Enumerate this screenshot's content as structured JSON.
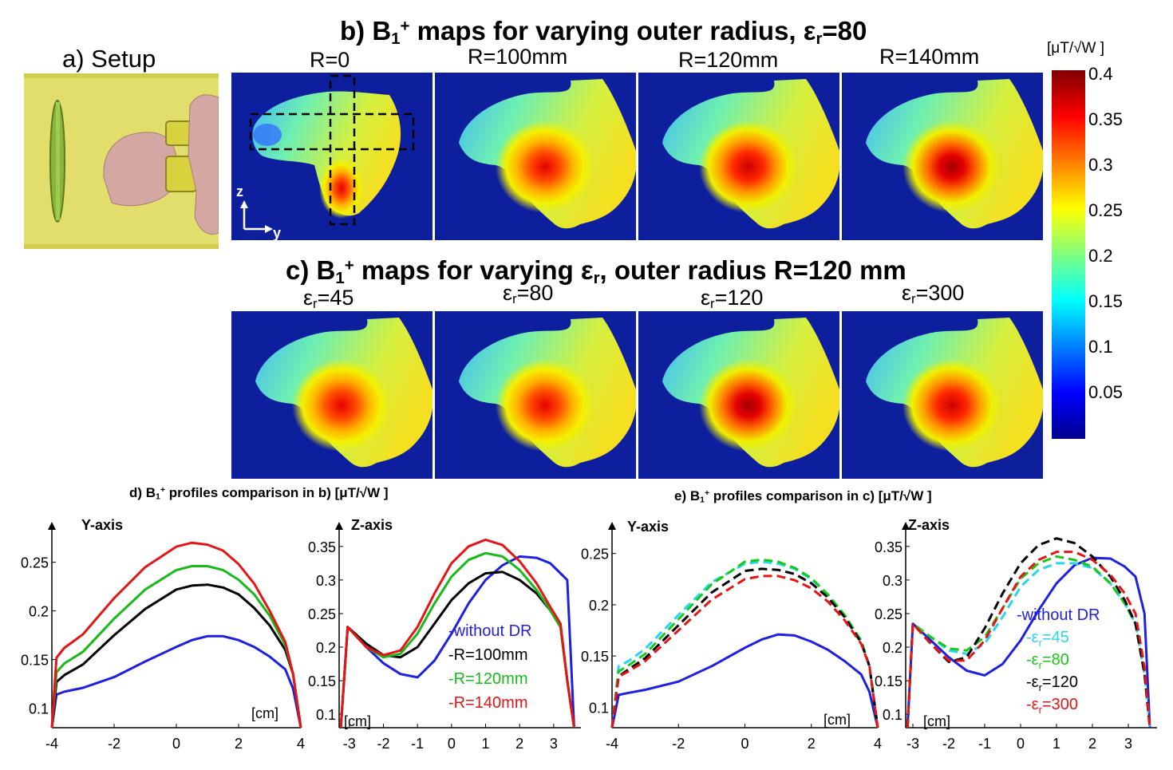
{
  "colors": {
    "background_map": "#0d1f9c",
    "without_dr": "#1f1fe0",
    "r100": "#000000",
    "r120": "#18b918",
    "r140": "#e51515",
    "er45": "#2ad4f0",
    "er80": "#18c818",
    "er120": "#000000",
    "er300": "#e51515"
  },
  "panel_a": {
    "title": "a) Setup"
  },
  "panel_b": {
    "title_pre": "b) B",
    "title_sub": "1",
    "title_sup": "+",
    "title_mid": " maps for varying outer radius, ε",
    "title_sub2": "r",
    "title_post": "=80",
    "maps": [
      "R=0",
      "R=100mm",
      "R=120mm",
      "R=140mm"
    ],
    "axis_z": "z",
    "axis_y": "y"
  },
  "panel_c": {
    "title_pre": "c) B",
    "title_sub": "1",
    "title_sup": "+",
    "title_mid": " maps for varying ε",
    "title_sub2": "r",
    "title_post": ", outer radius R=120 mm",
    "maps": [
      {
        "pre": "ε",
        "sub": "r",
        "post": "=45"
      },
      {
        "pre": "ε",
        "sub": "r",
        "post": "=80"
      },
      {
        "pre": "ε",
        "sub": "r",
        "post": "=120"
      },
      {
        "pre": "ε",
        "sub": "r",
        "post": "=300"
      }
    ]
  },
  "colorbar": {
    "unit": "[μT/√W ]",
    "ticks": [
      "0.4",
      "0.35",
      "0.3",
      "0.25",
      "0.2",
      "0.15",
      "0.1",
      "0.05"
    ]
  },
  "panel_d": {
    "title_pre": "d) B",
    "title_sub": "1",
    "title_sup": "+",
    "title_post": " profiles comparison in b) [μT/√W ]"
  },
  "panel_e": {
    "title_pre": "e) B",
    "title_sub": "1",
    "title_sup": "+",
    "title_post": " profiles comparison in c) [μT/√W ]"
  },
  "chart_data": [
    {
      "type": "line",
      "title": "Y-axis",
      "xlabel": "[cm]",
      "xlim": [
        -4,
        4
      ],
      "ylim": [
        0.08,
        0.28
      ],
      "xticks": [
        "-4",
        "-2",
        "0",
        "2",
        "4"
      ],
      "yticks": [
        "0.25",
        "0.2",
        "0.15",
        "0.1"
      ],
      "yticks_values": [
        0.25,
        0.2,
        0.15,
        0.1
      ],
      "x": [
        -4,
        -3.85,
        -3.6,
        -3,
        -2,
        -1,
        0,
        0.5,
        1,
        1.5,
        2,
        2.5,
        3,
        3.5,
        3.75,
        4
      ],
      "series": [
        {
          "name": "without DR",
          "color": "#1f1fe0",
          "dash": false,
          "values": [
            0.08,
            0.114,
            0.117,
            0.121,
            0.132,
            0.148,
            0.163,
            0.17,
            0.174,
            0.174,
            0.17,
            0.163,
            0.153,
            0.14,
            0.12,
            0.08
          ]
        },
        {
          "name": "R=100mm",
          "color": "#000000",
          "dash": false,
          "values": [
            0.08,
            0.127,
            0.134,
            0.145,
            0.175,
            0.202,
            0.222,
            0.226,
            0.227,
            0.224,
            0.217,
            0.203,
            0.185,
            0.16,
            0.135,
            0.08
          ]
        },
        {
          "name": "R=120mm",
          "color": "#18b918",
          "dash": false,
          "values": [
            0.08,
            0.137,
            0.146,
            0.158,
            0.192,
            0.222,
            0.242,
            0.246,
            0.246,
            0.242,
            0.232,
            0.217,
            0.195,
            0.165,
            0.135,
            0.08
          ]
        },
        {
          "name": "R=140mm",
          "color": "#e51515",
          "dash": false,
          "values": [
            0.08,
            0.152,
            0.162,
            0.176,
            0.213,
            0.245,
            0.266,
            0.27,
            0.268,
            0.262,
            0.248,
            0.228,
            0.2,
            0.168,
            0.135,
            0.08
          ]
        }
      ]
    },
    {
      "type": "line",
      "title": "Z-axis",
      "xlabel": "[cm]",
      "xlim": [
        -3.3,
        3.8
      ],
      "ylim": [
        0.08,
        0.37
      ],
      "xticks": [
        "-3",
        "-2",
        "-1",
        "0",
        "1",
        "2",
        "3"
      ],
      "xticks_values": [
        -3,
        -2,
        -1,
        0,
        1,
        2,
        3
      ],
      "yticks": [
        "0.35",
        "0.3",
        "0.25",
        "0.2",
        "0.15",
        "0.1"
      ],
      "yticks_values": [
        0.35,
        0.3,
        0.25,
        0.2,
        0.15,
        0.1
      ],
      "x": [
        -3.25,
        -3.05,
        -2.5,
        -2,
        -1.5,
        -1,
        -0.5,
        0,
        0.5,
        1,
        1.5,
        2,
        2.5,
        2.9,
        3.2,
        3.4,
        3.6
      ],
      "legend": [
        {
          "text": "-without DR",
          "color": "#1f1fe0"
        },
        {
          "text": "-R=100mm",
          "color": "#000000"
        },
        {
          "text": "-R=120mm",
          "color": "#18b918"
        },
        {
          "text": "-R=140mm",
          "color": "#e51515"
        }
      ],
      "series": [
        {
          "name": "without DR",
          "color": "#1f1fe0",
          "dash": false,
          "values": [
            0.08,
            0.23,
            0.2,
            0.176,
            0.16,
            0.155,
            0.18,
            0.22,
            0.265,
            0.3,
            0.322,
            0.335,
            0.333,
            0.325,
            0.31,
            0.3,
            0.08
          ]
        },
        {
          "name": "R=100mm",
          "color": "#000000",
          "dash": false,
          "values": [
            0.08,
            0.23,
            0.205,
            0.188,
            0.185,
            0.2,
            0.235,
            0.27,
            0.295,
            0.31,
            0.312,
            0.3,
            0.28,
            0.255,
            0.23,
            0.15,
            0.08
          ]
        },
        {
          "name": "R=120mm",
          "color": "#18b918",
          "dash": false,
          "values": [
            0.08,
            0.23,
            0.2,
            0.185,
            0.19,
            0.22,
            0.265,
            0.305,
            0.33,
            0.34,
            0.335,
            0.315,
            0.285,
            0.255,
            0.23,
            0.15,
            0.08
          ]
        },
        {
          "name": "R=140mm",
          "color": "#e51515",
          "dash": false,
          "values": [
            0.08,
            0.23,
            0.2,
            0.188,
            0.195,
            0.23,
            0.28,
            0.325,
            0.35,
            0.36,
            0.352,
            0.328,
            0.295,
            0.26,
            0.235,
            0.15,
            0.08
          ]
        }
      ]
    },
    {
      "type": "line",
      "title": "Y-axis",
      "xlabel": "[cm]",
      "xlim": [
        -4,
        4
      ],
      "ylim": [
        0.08,
        0.27
      ],
      "xticks": [
        "-4",
        "-2",
        "0",
        "2",
        "4"
      ],
      "yticks": [
        "0.25",
        "0.2",
        "0.15",
        "0.1"
      ],
      "yticks_values": [
        0.25,
        0.2,
        0.15,
        0.1
      ],
      "x": [
        -4,
        -3.8,
        -3.5,
        -3,
        -2,
        -1,
        0,
        0.5,
        1,
        1.5,
        2,
        2.5,
        3,
        3.5,
        3.75,
        4
      ],
      "series": [
        {
          "name": "without DR",
          "color": "#1f1fe0",
          "dash": false,
          "values": [
            0.08,
            0.112,
            0.114,
            0.117,
            0.125,
            0.14,
            0.158,
            0.166,
            0.171,
            0.17,
            0.164,
            0.156,
            0.145,
            0.132,
            0.115,
            0.08
          ]
        },
        {
          "name": "εr=45",
          "color": "#2ad4f0",
          "dash": true,
          "values": [
            0.08,
            0.14,
            0.145,
            0.157,
            0.19,
            0.222,
            0.24,
            0.242,
            0.24,
            0.235,
            0.225,
            0.21,
            0.19,
            0.165,
            0.14,
            0.08
          ]
        },
        {
          "name": "εr=80",
          "color": "#18c818",
          "dash": true,
          "values": [
            0.08,
            0.135,
            0.141,
            0.152,
            0.186,
            0.22,
            0.242,
            0.244,
            0.242,
            0.236,
            0.226,
            0.21,
            0.19,
            0.165,
            0.14,
            0.08
          ]
        },
        {
          "name": "εr=120",
          "color": "#000000",
          "dash": true,
          "values": [
            0.08,
            0.13,
            0.137,
            0.148,
            0.18,
            0.212,
            0.233,
            0.235,
            0.234,
            0.23,
            0.221,
            0.207,
            0.188,
            0.163,
            0.14,
            0.08
          ]
        },
        {
          "name": "εr=300",
          "color": "#e51515",
          "dash": true,
          "values": [
            0.08,
            0.13,
            0.135,
            0.145,
            0.175,
            0.205,
            0.225,
            0.228,
            0.228,
            0.224,
            0.216,
            0.203,
            0.185,
            0.162,
            0.14,
            0.08
          ]
        }
      ]
    },
    {
      "type": "line",
      "title": "Z-axis",
      "xlabel": "[cm]",
      "xlim": [
        -3.2,
        3.8
      ],
      "ylim": [
        0.08,
        0.37
      ],
      "xticks": [
        "-3",
        "-2",
        "-1",
        "0",
        "1",
        "2",
        "3"
      ],
      "xticks_values": [
        -3,
        -2,
        -1,
        0,
        1,
        2,
        3
      ],
      "yticks": [
        "0.35",
        "0.3",
        "0.25",
        "0.2",
        "0.15",
        "0.1"
      ],
      "yticks_values": [
        0.35,
        0.3,
        0.25,
        0.2,
        0.15,
        0.1
      ],
      "x": [
        -3.15,
        -3,
        -2.5,
        -2,
        -1.5,
        -1,
        -0.5,
        0,
        0.5,
        1,
        1.5,
        2,
        2.5,
        2.9,
        3.2,
        3.45,
        3.6
      ],
      "legend": [
        {
          "text": "-without DR",
          "color": "#1f1fe0"
        },
        {
          "pre": "-ε",
          "sub": "r",
          "post": "=45",
          "color": "#2ad4f0"
        },
        {
          "pre": "-ε",
          "sub": "r",
          "post": "=80",
          "color": "#18c818"
        },
        {
          "pre": "-ε",
          "sub": "r",
          "post": "=120",
          "color": "#000000"
        },
        {
          "pre": "-ε",
          "sub": "r",
          "post": "=300",
          "color": "#e51515"
        }
      ],
      "series": [
        {
          "name": "without DR",
          "color": "#1f1fe0",
          "dash": false,
          "values": [
            0.08,
            0.235,
            0.21,
            0.185,
            0.165,
            0.158,
            0.175,
            0.21,
            0.255,
            0.295,
            0.322,
            0.333,
            0.332,
            0.32,
            0.305,
            0.25,
            0.08
          ]
        },
        {
          "name": "εr=45",
          "color": "#2ad4f0",
          "dash": true,
          "values": [
            0.08,
            0.235,
            0.215,
            0.195,
            0.19,
            0.205,
            0.245,
            0.29,
            0.315,
            0.325,
            0.325,
            0.318,
            0.295,
            0.265,
            0.235,
            0.16,
            0.08
          ]
        },
        {
          "name": "εr=80",
          "color": "#18c818",
          "dash": true,
          "values": [
            0.08,
            0.235,
            0.215,
            0.198,
            0.195,
            0.215,
            0.258,
            0.302,
            0.325,
            0.335,
            0.33,
            0.32,
            0.295,
            0.265,
            0.235,
            0.16,
            0.08
          ]
        },
        {
          "name": "εr=120",
          "color": "#000000",
          "dash": true,
          "values": [
            0.08,
            0.235,
            0.205,
            0.178,
            0.185,
            0.228,
            0.28,
            0.325,
            0.352,
            0.362,
            0.355,
            0.335,
            0.305,
            0.27,
            0.235,
            0.16,
            0.08
          ]
        },
        {
          "name": "εr=300",
          "color": "#e51515",
          "dash": true,
          "values": [
            0.08,
            0.235,
            0.205,
            0.18,
            0.18,
            0.21,
            0.258,
            0.305,
            0.33,
            0.342,
            0.342,
            0.33,
            0.308,
            0.28,
            0.25,
            0.17,
            0.08
          ]
        }
      ]
    }
  ]
}
